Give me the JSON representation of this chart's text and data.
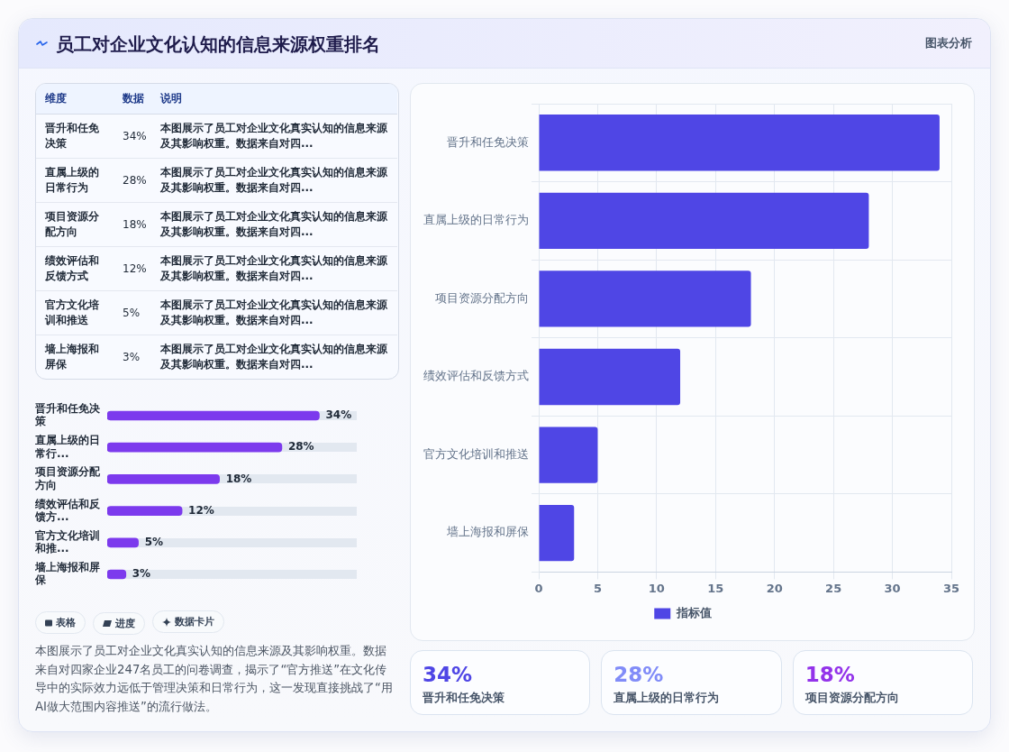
{
  "chart_data": [
    {
      "type": "other",
      "title": "员工对企业文化认知的信息来源权重排名",
      "subtitle": "图表分析",
      "categories": [
        "晋升和任免决策",
        "直属上级的日常行为",
        "项目资源分配方向",
        "绩效评估和反馈方式",
        "官方文化培训和推送",
        "墙上海报和屏保"
      ],
      "value_labels": [
        "34%",
        "28%",
        "18%",
        "12%",
        "5%",
        "3%"
      ],
      "annotations": [
        "维度",
        "数据",
        "说明",
        "本图展示了员工对企业文化真实认知的信息来源及其影响权重。数据来自对四...",
        "本图展示了员工对企业文化真实认知的信息来源及其影响权重。数据来自对四...",
        "本图展示了员工对企业文化真实认知的信息来源及其影响权重。数据来自对四...",
        "本图展示了员工对企业文化真实认知的信息来源及其影响权重。数据来自对四...",
        "本图展示了员工对企业文化真实认知的信息来源及其影响权重。数据来自对四...",
        "本图展示了员工对企业文化真实认知的信息来源及其影响权重。数据来自对四..."
      ]
    },
    {
      "type": "bar",
      "orientation": "horizontal",
      "categories": [
        "晋升和任免决策",
        "直属上级的日常行...",
        "项目资源分配方向",
        "绩效评估和反馈方...",
        "官方文化培训和推...",
        "墙上海报和屏保"
      ],
      "values": [
        34,
        28,
        18,
        12,
        5,
        3
      ],
      "value_labels": [
        "34%",
        "28%",
        "18%",
        "12%",
        "5%",
        "3%"
      ],
      "color": "#7c3aed",
      "grid": "y",
      "tick_labels": "y",
      "annotations": [
        "表格",
        "进度",
        "数据卡片",
        "本图展示了员工对企业文化真实认知的信息来源及其影响权重。数据来自对四家企业247名员工的问卷调查，揭示了“官方推送”在文化传导中的实际效力远低于管理决策和日常行为，这一发现直接挑战了“用AI做大范围内容推送”的流行做法。"
      ]
    },
    {
      "type": "bar",
      "orientation": "horizontal",
      "categories": [
        "晋升和任免决策",
        "直属上级的日常行为",
        "项目资源分配方向",
        "绩效评估和反馈方式",
        "官方文化培训和推送",
        "墙上海报和屏保"
      ],
      "series": [
        {
          "name": "指标值",
          "color": "#4f46e5",
          "values": [
            34,
            28,
            18,
            12,
            5,
            3
          ]
        }
      ],
      "xlim": [
        0,
        35
      ],
      "xticks": [
        0,
        5,
        10,
        15,
        20,
        25,
        30,
        35
      ],
      "grid": true,
      "legend": "bottom"
    },
    {
      "type": "other",
      "categories": [
        "晋升和任免决策",
        "直属上级的日常行为",
        "项目资源分配方向"
      ],
      "value_labels": [
        "34%",
        "28%",
        "18%"
      ]
    }
  ]
}
